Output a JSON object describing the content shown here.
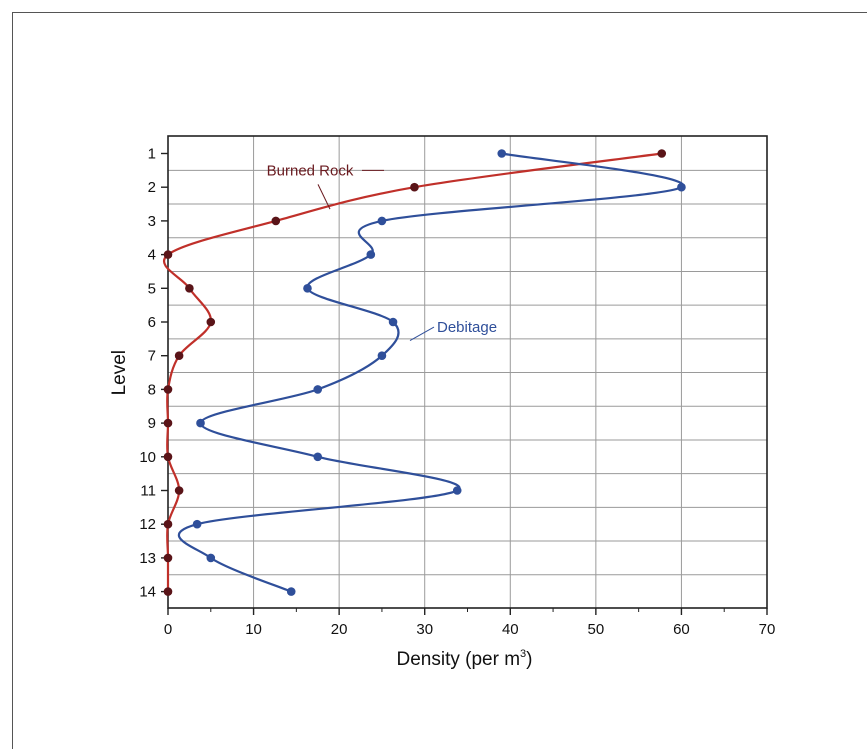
{
  "chart_data": {
    "type": "line",
    "xlabel": "Density (per m",
    "xlabel_superscript": "3",
    "xlabel_suffix": ")",
    "ylabel": "Level",
    "xlim": [
      0,
      70
    ],
    "x_ticks": [
      0,
      10,
      20,
      30,
      40,
      50,
      60,
      70
    ],
    "y_ticks": [
      1,
      2,
      3,
      4,
      5,
      6,
      7,
      8,
      9,
      10,
      11,
      12,
      13,
      14
    ],
    "y_inverted": true,
    "grid": true,
    "series": [
      {
        "name": "Burned Rock",
        "color": "#c0302a",
        "marker_color": "#5a1418",
        "levels": [
          1,
          2,
          3,
          4,
          5,
          6,
          7,
          8,
          9,
          10,
          11,
          12,
          13,
          14
        ],
        "values": [
          57.7,
          28.8,
          12.6,
          0,
          2.5,
          5.0,
          1.3,
          0,
          0,
          0,
          1.3,
          0,
          0,
          0
        ]
      },
      {
        "name": "Debitage",
        "color": "#2f4f9a",
        "marker_color": "#2f4f9a",
        "levels": [
          1,
          2,
          3,
          4,
          5,
          6,
          7,
          8,
          9,
          10,
          11,
          12,
          13,
          14
        ],
        "values": [
          39.0,
          60.0,
          25.0,
          23.7,
          16.3,
          26.3,
          25.0,
          17.5,
          3.8,
          17.5,
          33.8,
          3.4,
          5.0,
          14.4
        ]
      }
    ]
  }
}
